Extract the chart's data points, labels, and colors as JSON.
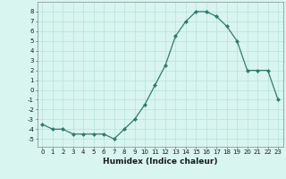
{
  "x": [
    0,
    1,
    2,
    3,
    4,
    5,
    6,
    7,
    8,
    9,
    10,
    11,
    12,
    13,
    14,
    15,
    16,
    17,
    18,
    19,
    20,
    21,
    22,
    23
  ],
  "y": [
    -3.5,
    -4.0,
    -4.0,
    -4.5,
    -4.5,
    -4.5,
    -4.5,
    -5.0,
    -4.0,
    -3.0,
    -1.5,
    0.5,
    2.5,
    5.5,
    7.0,
    8.0,
    8.0,
    7.5,
    6.5,
    5.0,
    2.0,
    2.0,
    2.0,
    -1.0
  ],
  "xlabel": "Humidex (Indice chaleur)",
  "ylim": [
    -5.8,
    9.0
  ],
  "xlim": [
    -0.5,
    23.5
  ],
  "yticks": [
    -5,
    -4,
    -3,
    -2,
    -1,
    0,
    1,
    2,
    3,
    4,
    5,
    6,
    7,
    8
  ],
  "xticks": [
    0,
    1,
    2,
    3,
    4,
    5,
    6,
    7,
    8,
    9,
    10,
    11,
    12,
    13,
    14,
    15,
    16,
    17,
    18,
    19,
    20,
    21,
    22,
    23
  ],
  "line_color": "#2d7d6e",
  "marker": "D",
  "marker_size": 2.0,
  "bg_color": "#d8f5f0",
  "grid_color": "#b8e0da",
  "xlabel_fontsize": 6.5,
  "tick_fontsize": 5.0,
  "lw": 0.9
}
